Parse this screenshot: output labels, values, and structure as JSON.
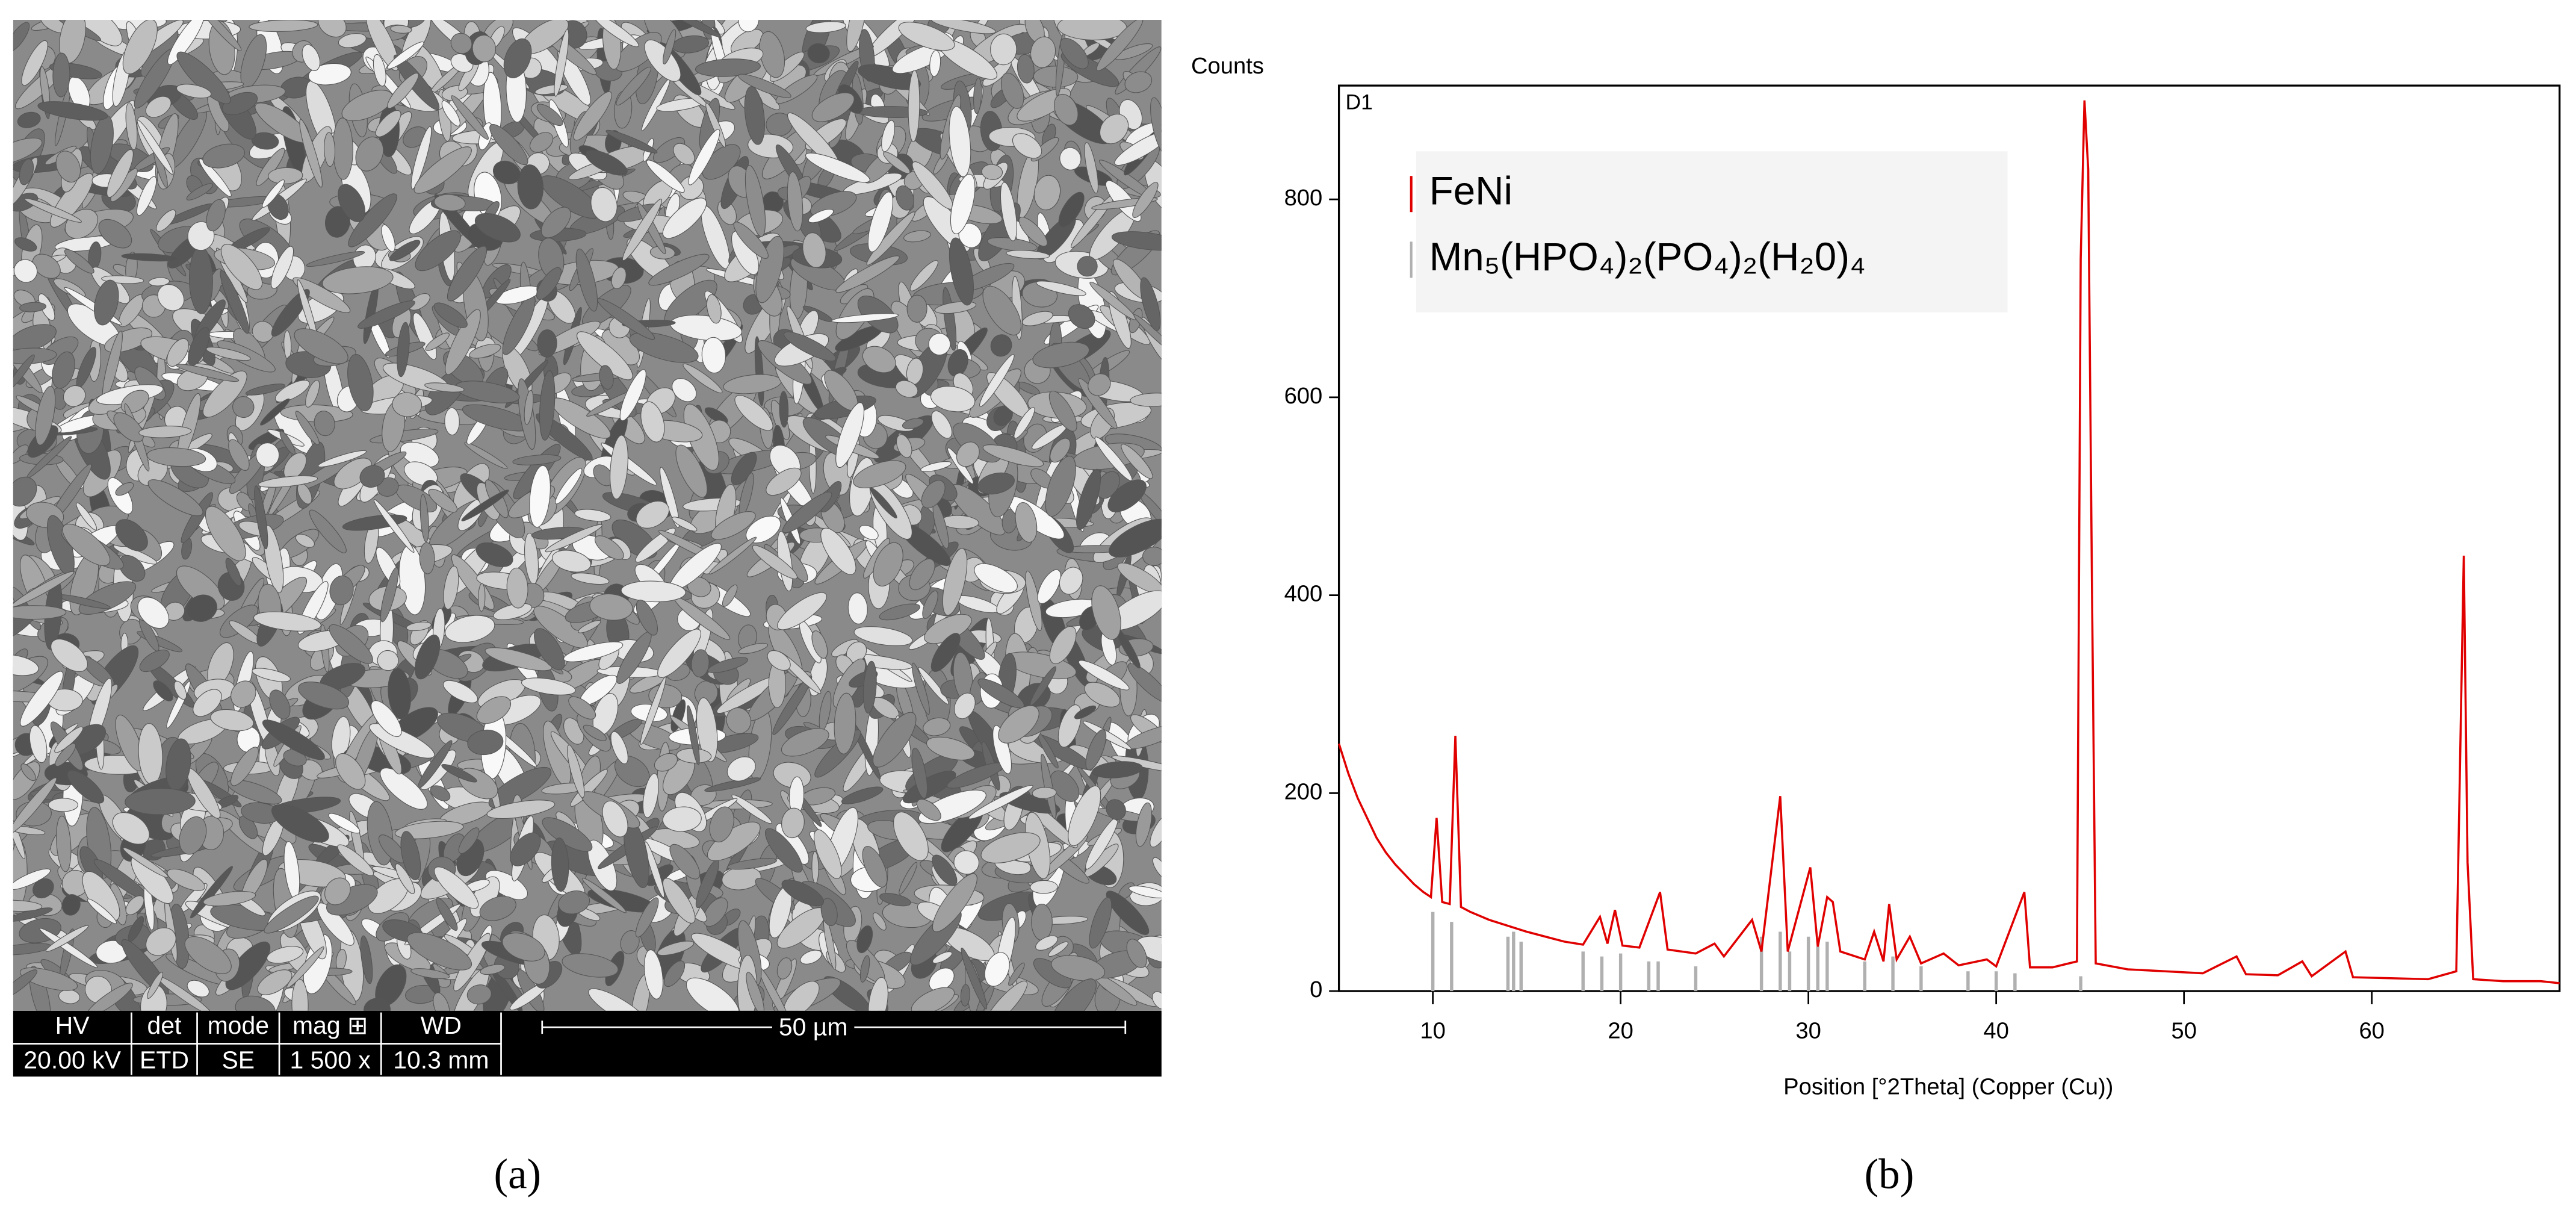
{
  "sem_panel": {
    "label": "(a)",
    "info_bar": {
      "headers": [
        "HV",
        "det",
        "mode",
        "mag ⊞",
        "WD"
      ],
      "values": [
        "20.00 kV",
        "ETD",
        "SE",
        "1 500 x",
        "10.3 mm"
      ],
      "scale": "50 µm"
    }
  },
  "chart_data": {
    "type": "line",
    "label": "(b)",
    "title": "D1",
    "y_label": "Counts",
    "x_label": "Position [°2Theta] (Copper (Cu))",
    "xlim": [
      5,
      70
    ],
    "ylim": [
      0,
      915
    ],
    "xticks": [
      10,
      20,
      30,
      40,
      50,
      60
    ],
    "yticks": [
      0,
      200,
      400,
      600,
      800
    ],
    "series": [
      {
        "name": "FeNi",
        "color": "#e00000",
        "x": [
          5.0,
          5.5,
          6.0,
          6.5,
          7.0,
          7.5,
          8.0,
          8.5,
          9.0,
          9.5,
          9.9,
          10.2,
          10.5,
          10.9,
          11.2,
          11.5,
          12.0,
          13.0,
          14.0,
          15.0,
          16.0,
          17.0,
          18.0,
          18.9,
          19.3,
          19.7,
          20.1,
          21.0,
          22.1,
          22.5,
          24.0,
          25.0,
          25.5,
          27.0,
          27.5,
          28.5,
          28.9,
          30.1,
          30.5,
          31.0,
          31.3,
          31.7,
          33.0,
          33.5,
          34.0,
          34.3,
          34.7,
          35.4,
          36.0,
          37.2,
          38.0,
          39.5,
          40.0,
          41.5,
          41.8,
          43.0,
          44.3,
          44.5,
          44.7,
          44.9,
          45.1,
          45.3,
          47.0,
          49.0,
          51.0,
          52.8,
          53.3,
          55.0,
          56.3,
          56.8,
          58.6,
          59.0,
          61.0,
          63.0,
          64.5,
          64.9,
          65.1,
          65.4,
          67.0,
          69.0,
          70.0
        ],
        "values": [
          250,
          220,
          195,
          175,
          155,
          140,
          128,
          118,
          108,
          100,
          95,
          175,
          90,
          88,
          258,
          85,
          80,
          72,
          66,
          60,
          55,
          50,
          47,
          75,
          48,
          82,
          46,
          44,
          100,
          42,
          38,
          48,
          35,
          72,
          40,
          197,
          40,
          125,
          45,
          95,
          90,
          40,
          32,
          60,
          30,
          88,
          32,
          55,
          28,
          38,
          26,
          32,
          25,
          100,
          24,
          24,
          30,
          740,
          900,
          830,
          410,
          28,
          22,
          20,
          18,
          35,
          17,
          16,
          30,
          15,
          40,
          14,
          13,
          12,
          20,
          440,
          130,
          12,
          10,
          10,
          8
        ]
      },
      {
        "name": "Mn₅(HPO₄)₂(PO₄)₂(H₂0)₄",
        "color": "#b0b0b0",
        "style": "stick",
        "x": [
          10.0,
          11.0,
          14.0,
          14.3,
          14.7,
          18.0,
          19.0,
          20.0,
          21.5,
          22.0,
          24.0,
          27.5,
          28.5,
          29.0,
          30.0,
          30.5,
          31.0,
          33.0,
          34.5,
          36.0,
          38.5,
          40.0,
          41.0,
          44.5
        ],
        "values": [
          80,
          70,
          55,
          60,
          50,
          40,
          35,
          38,
          30,
          30,
          25,
          55,
          60,
          40,
          55,
          45,
          50,
          30,
          35,
          25,
          20,
          20,
          18,
          15
        ]
      }
    ]
  }
}
